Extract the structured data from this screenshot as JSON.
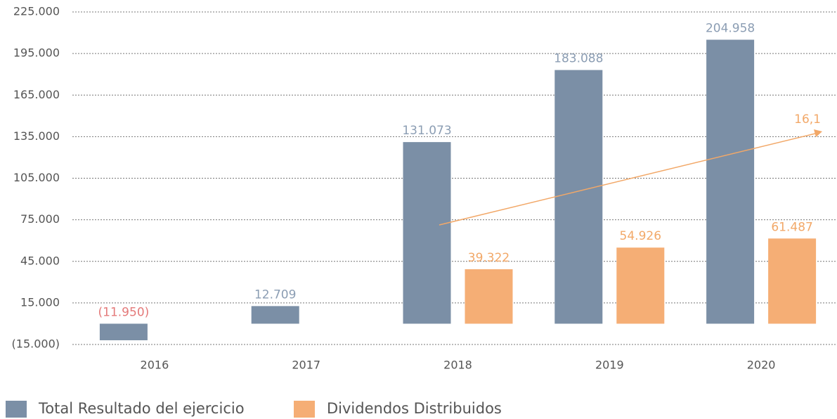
{
  "chart_data": {
    "type": "bar",
    "categories": [
      "2016",
      "2017",
      "2018",
      "2019",
      "2020"
    ],
    "series": [
      {
        "name": "Total Resultado del ejercicio",
        "color": "#7b8fa6",
        "label_color": "#8b9db3",
        "values": [
          -11950,
          12709,
          131073,
          183088,
          204958
        ],
        "value_labels": [
          "(11.950)",
          "12.709",
          "131.073",
          "183.088",
          "204.958"
        ]
      },
      {
        "name": "Dividendos Distribuidos",
        "color": "#f5ae75",
        "label_color": "#f2a868",
        "values": [
          null,
          null,
          39322,
          54926,
          61487
        ],
        "value_labels": [
          null,
          null,
          "39.322",
          "54.926",
          "61.487"
        ]
      }
    ],
    "negative_label_color": "#e47a7a",
    "ylim": [
      -15000,
      225000
    ],
    "yticks": [
      {
        "value": -15000,
        "label": "(15.000)"
      },
      {
        "value": 15000,
        "label": "15.000"
      },
      {
        "value": 45000,
        "label": "45.000"
      },
      {
        "value": 75000,
        "label": "75.000"
      },
      {
        "value": 105000,
        "label": "105.000"
      },
      {
        "value": 135000,
        "label": "135.000"
      },
      {
        "value": 165000,
        "label": "165.000"
      },
      {
        "value": 195000,
        "label": "195.000"
      },
      {
        "value": 225000,
        "label": "225.000"
      }
    ],
    "grid": true,
    "annotation": {
      "text": "16,1",
      "color": "#f2a868"
    }
  }
}
